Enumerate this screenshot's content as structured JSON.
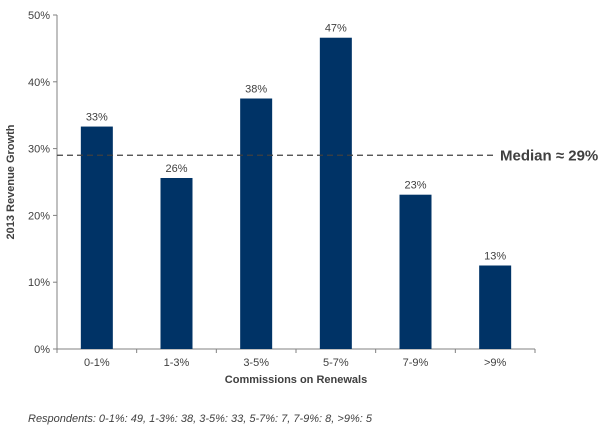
{
  "chart_data": {
    "type": "bar",
    "categories": [
      "0-1%",
      "1-3%",
      "3-5%",
      "5-7%",
      "7-9%",
      ">9%"
    ],
    "values": [
      33.3,
      25.6,
      37.5,
      46.6,
      23.1,
      12.5
    ],
    "data_labels": [
      "33%",
      "26%",
      "38%",
      "47%",
      "23%",
      "13%"
    ],
    "xlabel": "Commissions on Renewals",
    "ylabel": "2013 Revenue Growth",
    "ylim": [
      0,
      50
    ],
    "yticks": [
      0,
      10,
      20,
      30,
      40,
      50
    ],
    "ytick_labels": [
      "0%",
      "10%",
      "20%",
      "30%",
      "40%",
      "50%"
    ],
    "median_value": 29,
    "median_label": "Median ≈ 29%",
    "bar_color": "#003366",
    "grid": false
  },
  "footnote": "Respondents: 0-1%: 49, 1-3%: 38, 3-5%: 33, 5-7%: 7, 7-9%: 8, >9%: 5"
}
